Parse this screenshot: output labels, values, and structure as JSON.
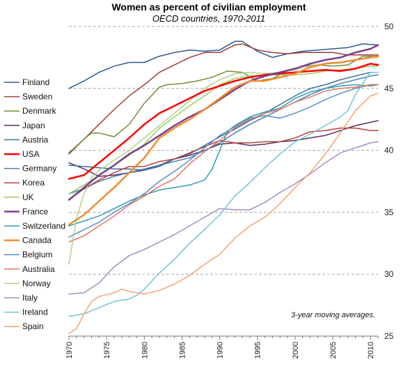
{
  "chart_data": {
    "type": "line",
    "title": "Women as percent of civilian  employment",
    "subtitle": "OECD countries, 1970-2011",
    "note": "3-year moving averages.",
    "xlabel": "",
    "ylabel": "",
    "xlim": [
      1970,
      2011
    ],
    "ylim": [
      25,
      50
    ],
    "yticks": [
      25,
      30,
      35,
      40,
      45,
      50
    ],
    "xticks": [
      1970,
      1975,
      1980,
      1985,
      1990,
      1995,
      2000,
      2005,
      2010
    ],
    "grid": "horizontal dashed",
    "legend_position": "left",
    "series": [
      {
        "name": "Finland",
        "color": "#2e5b8f",
        "width": 1.5,
        "years": [
          1970,
          1972,
          1974,
          1976,
          1978,
          1980,
          1982,
          1984,
          1986,
          1988,
          1990,
          1992,
          1993,
          1995,
          1997,
          1999,
          2001,
          2003,
          2005,
          2007,
          2009,
          2011
        ],
        "values": [
          45.0,
          45.6,
          46.3,
          46.8,
          47.1,
          47.1,
          47.6,
          47.9,
          48.1,
          48.0,
          48.1,
          48.8,
          48.8,
          48.0,
          47.5,
          47.8,
          48.0,
          48.1,
          48.2,
          48.3,
          48.6,
          48.5
        ]
      },
      {
        "name": "Sweden",
        "color": "#a03d37",
        "width": 1.5,
        "years": [
          1970,
          1972,
          1974,
          1976,
          1978,
          1980,
          1982,
          1984,
          1986,
          1988,
          1990,
          1992,
          1993,
          1995,
          1997,
          1999,
          2001,
          2003,
          2005,
          2007,
          2009,
          2011
        ],
        "values": [
          39.7,
          40.9,
          42.1,
          43.3,
          44.4,
          45.3,
          46.3,
          46.9,
          47.5,
          47.9,
          47.9,
          48.5,
          48.6,
          48.1,
          47.9,
          47.8,
          47.9,
          47.9,
          47.9,
          47.7,
          47.7,
          47.7
        ]
      },
      {
        "name": "Denmark",
        "color": "#6f8e37",
        "width": 1.5,
        "years": [
          1970,
          1972,
          1973,
          1974,
          1976,
          1978,
          1980,
          1982,
          1983,
          1985,
          1987,
          1989,
          1991,
          1993,
          1995,
          1997,
          1999,
          2001,
          2003,
          2005,
          2007,
          2009,
          2011
        ],
        "values": [
          39.8,
          40.9,
          41.4,
          41.4,
          41.1,
          42.1,
          43.8,
          45.1,
          45.3,
          45.4,
          45.6,
          45.9,
          46.4,
          46.3,
          45.6,
          45.8,
          46.4,
          46.8,
          46.9,
          46.8,
          46.9,
          47.6,
          47.6
        ]
      },
      {
        "name": "Japan",
        "color": "#5a2d5e",
        "width": 1.5,
        "years": [
          1970,
          1972,
          1974,
          1976,
          1978,
          1980,
          1982,
          1984,
          1986,
          1988,
          1990,
          1992,
          1994,
          1996,
          1998,
          2000,
          2002,
          2004,
          2006,
          2008,
          2011
        ],
        "values": [
          39.0,
          38.5,
          37.9,
          38.0,
          38.2,
          38.4,
          38.8,
          39.3,
          39.6,
          40.0,
          40.5,
          40.6,
          40.4,
          40.5,
          40.7,
          40.8,
          41.0,
          41.2,
          41.6,
          42.0,
          42.4
        ]
      },
      {
        "name": "Austria",
        "color": "#37719f",
        "width": 1.5,
        "years": [
          1970,
          1972,
          1974,
          1976,
          1978,
          1980,
          1982,
          1984,
          1986,
          1988,
          1990,
          1992,
          1994,
          1996,
          1998,
          2000,
          2002,
          2004,
          2006,
          2008,
          2010,
          2011
        ],
        "values": [
          38.8,
          38.7,
          38.6,
          38.5,
          38.5,
          38.4,
          38.7,
          39.3,
          39.7,
          40.4,
          41.1,
          41.7,
          42.4,
          43.0,
          43.7,
          44.4,
          45.0,
          45.3,
          45.7,
          46.0,
          46.3,
          46.3
        ]
      },
      {
        "name": "USA",
        "color": "#ff0000",
        "width": 2.5,
        "years": [
          1970,
          1972,
          1974,
          1976,
          1978,
          1980,
          1982,
          1984,
          1986,
          1988,
          1990,
          1992,
          1994,
          1996,
          1998,
          2000,
          2002,
          2004,
          2006,
          2008,
          2010,
          2011
        ],
        "values": [
          37.7,
          38.0,
          39.0,
          40.0,
          41.0,
          42.1,
          43.0,
          43.6,
          44.2,
          44.8,
          45.2,
          45.6,
          45.9,
          46.1,
          46.2,
          46.3,
          46.4,
          46.5,
          46.4,
          46.6,
          47.0,
          46.9
        ]
      },
      {
        "name": "Germany",
        "color": "#4b7fb5",
        "width": 1.5,
        "years": [
          1970,
          1972,
          1974,
          1976,
          1978,
          1980,
          1982,
          1984,
          1986,
          1988,
          1990,
          1992,
          1994,
          1996,
          1998,
          2000,
          2002,
          2004,
          2006,
          2008,
          2010,
          2011
        ],
        "values": [
          36.5,
          36.9,
          37.5,
          37.9,
          38.2,
          38.5,
          38.8,
          39.1,
          39.4,
          40.0,
          40.6,
          41.4,
          42.1,
          42.7,
          43.3,
          43.9,
          44.5,
          45.0,
          45.4,
          45.7,
          46.0,
          46.1
        ]
      },
      {
        "name": "Korea",
        "color": "#b5423b",
        "width": 1.5,
        "years": [
          1970,
          1972,
          1974,
          1976,
          1978,
          1980,
          1982,
          1984,
          1986,
          1988,
          1990,
          1992,
          1994,
          1996,
          1998,
          2000,
          2002,
          2004,
          2006,
          2008,
          2010,
          2011
        ],
        "values": [
          36.0,
          36.9,
          37.6,
          38.2,
          38.7,
          38.7,
          39.1,
          39.3,
          39.8,
          40.3,
          40.8,
          40.6,
          40.6,
          40.7,
          40.7,
          41.0,
          41.5,
          41.6,
          41.8,
          41.8,
          41.6,
          41.6
        ]
      },
      {
        "name": "UK",
        "color": "#9acd5c",
        "width": 1.5,
        "years": [
          1970,
          1972,
          1974,
          1976,
          1978,
          1980,
          1982,
          1984,
          1986,
          1988,
          1990,
          1992,
          1994,
          1996,
          1998,
          2000,
          2002,
          2004,
          2006,
          2008,
          2010,
          2011
        ],
        "values": [
          36.5,
          37.2,
          38.0,
          38.8,
          39.6,
          40.5,
          41.8,
          42.7,
          43.6,
          44.4,
          45.3,
          45.8,
          46.0,
          46.1,
          46.1,
          46.1,
          46.2,
          46.4,
          46.5,
          46.6,
          46.8,
          46.8
        ]
      },
      {
        "name": "France",
        "color": "#7a3f8c",
        "width": 2.5,
        "years": [
          1970,
          1972,
          1974,
          1976,
          1978,
          1980,
          1982,
          1984,
          1986,
          1988,
          1990,
          1992,
          1994,
          1996,
          1998,
          2000,
          2002,
          2004,
          2006,
          2008,
          2010,
          2011
        ],
        "values": [
          36.0,
          37.0,
          38.0,
          38.8,
          39.7,
          40.4,
          41.2,
          42.0,
          42.7,
          43.3,
          44.1,
          44.9,
          45.6,
          46.0,
          46.3,
          46.6,
          47.0,
          47.3,
          47.5,
          47.9,
          48.2,
          48.5
        ]
      },
      {
        "name": "Switzerland",
        "color": "#2f9eb4",
        "width": 1.5,
        "years": [
          1970,
          1972,
          1974,
          1976,
          1978,
          1980,
          1982,
          1984,
          1986,
          1988,
          1989,
          1990,
          1991,
          1992,
          1994,
          1996,
          1998,
          2000,
          2002,
          2004,
          2006,
          2008,
          2010,
          2011
        ],
        "values": [
          33.9,
          34.3,
          34.7,
          35.3,
          35.9,
          36.4,
          36.8,
          37.0,
          37.2,
          37.6,
          38.5,
          40.0,
          41.5,
          42.0,
          42.7,
          43.1,
          43.4,
          44.2,
          44.7,
          45.0,
          45.2,
          45.3,
          45.2,
          45.3
        ]
      },
      {
        "name": "Canada",
        "color": "#f08c32",
        "width": 2.5,
        "years": [
          1970,
          1972,
          1974,
          1976,
          1978,
          1980,
          1982,
          1984,
          1986,
          1988,
          1990,
          1992,
          1994,
          1996,
          1998,
          2000,
          2002,
          2004,
          2006,
          2008,
          2010,
          2011
        ],
        "values": [
          34.0,
          34.8,
          35.9,
          37.0,
          38.2,
          39.4,
          41.0,
          41.8,
          42.5,
          43.3,
          44.2,
          45.1,
          45.6,
          45.6,
          45.9,
          46.2,
          46.7,
          47.0,
          47.1,
          47.3,
          47.5,
          47.6
        ]
      },
      {
        "name": "Belgium",
        "color": "#5c8ec7",
        "width": 1.5,
        "years": [
          1970,
          1972,
          1974,
          1976,
          1978,
          1980,
          1982,
          1984,
          1986,
          1988,
          1990,
          1992,
          1994,
          1996,
          1998,
          2000,
          2002,
          2004,
          2006,
          2008,
          2010,
          2011
        ],
        "values": [
          33.0,
          33.6,
          34.2,
          35.0,
          35.7,
          36.5,
          37.5,
          38.3,
          39.2,
          40.2,
          41.2,
          41.9,
          42.6,
          42.8,
          42.6,
          43.0,
          43.5,
          44.1,
          44.6,
          45.0,
          45.3,
          45.3
        ]
      },
      {
        "name": "Australia",
        "color": "#e8735e",
        "width": 1.5,
        "years": [
          1970,
          1972,
          1974,
          1976,
          1978,
          1980,
          1982,
          1984,
          1986,
          1988,
          1990,
          1992,
          1994,
          1996,
          1998,
          2000,
          2002,
          2004,
          2006,
          2008,
          2010,
          2011
        ],
        "values": [
          32.6,
          33.1,
          33.9,
          34.7,
          35.6,
          36.3,
          37.1,
          37.7,
          38.9,
          39.9,
          40.8,
          41.8,
          42.5,
          43.0,
          43.3,
          43.9,
          44.3,
          44.8,
          45.0,
          45.1,
          45.3,
          45.3
        ]
      },
      {
        "name": "Norway",
        "color": "#b0d28a",
        "width": 1.5,
        "years": [
          1970,
          1971,
          1972,
          1973,
          1974,
          1976,
          1978,
          1980,
          1982,
          1984,
          1986,
          1988,
          1990,
          1992,
          1994,
          1996,
          1998,
          2000,
          2002,
          2004,
          2006,
          2008,
          2010,
          2011
        ],
        "values": [
          30.8,
          34.5,
          36.5,
          37.8,
          38.4,
          39.2,
          40.0,
          41.0,
          42.0,
          43.0,
          44.0,
          45.0,
          45.7,
          46.2,
          46.3,
          46.2,
          46.3,
          46.5,
          46.8,
          47.0,
          47.1,
          47.3,
          47.5,
          47.5
        ]
      },
      {
        "name": "Italy",
        "color": "#a28dc4",
        "width": 1.5,
        "years": [
          1970,
          1972,
          1974,
          1976,
          1978,
          1980,
          1982,
          1984,
          1986,
          1988,
          1990,
          1992,
          1994,
          1996,
          1998,
          2000,
          2002,
          2004,
          2006,
          2008,
          2010,
          2011
        ],
        "values": [
          28.4,
          28.5,
          29.3,
          30.6,
          31.5,
          32.0,
          32.6,
          33.2,
          33.9,
          34.6,
          35.3,
          35.2,
          35.2,
          35.8,
          36.6,
          37.3,
          38.1,
          39.0,
          39.8,
          40.2,
          40.6,
          40.7
        ]
      },
      {
        "name": "Ireland",
        "color": "#72c3d8",
        "width": 1.5,
        "years": [
          1970,
          1972,
          1974,
          1976,
          1978,
          1979,
          1980,
          1982,
          1984,
          1986,
          1988,
          1990,
          1992,
          1994,
          1996,
          1998,
          2000,
          2002,
          2004,
          2006,
          2007,
          2008,
          2010,
          2011
        ],
        "values": [
          26.6,
          26.8,
          27.3,
          27.8,
          28.0,
          28.3,
          28.8,
          30.1,
          31.2,
          32.5,
          33.6,
          34.8,
          36.3,
          37.4,
          38.6,
          39.7,
          40.7,
          41.3,
          42.0,
          42.7,
          43.2,
          44.5,
          46.3,
          46.3
        ]
      },
      {
        "name": "Spain",
        "color": "#f2a572",
        "width": 1.5,
        "years": [
          1970,
          1971,
          1972,
          1973,
          1974,
          1976,
          1977,
          1978,
          1980,
          1982,
          1984,
          1986,
          1988,
          1990,
          1992,
          1994,
          1996,
          1998,
          2000,
          2002,
          2004,
          2006,
          2008,
          2010,
          2011
        ],
        "values": [
          25.2,
          25.6,
          26.8,
          27.8,
          28.2,
          28.5,
          28.8,
          28.6,
          28.4,
          28.7,
          29.2,
          29.9,
          30.8,
          31.6,
          32.9,
          33.9,
          34.6,
          35.7,
          37.0,
          38.2,
          39.7,
          41.4,
          43.2,
          44.4,
          44.6
        ]
      }
    ]
  }
}
